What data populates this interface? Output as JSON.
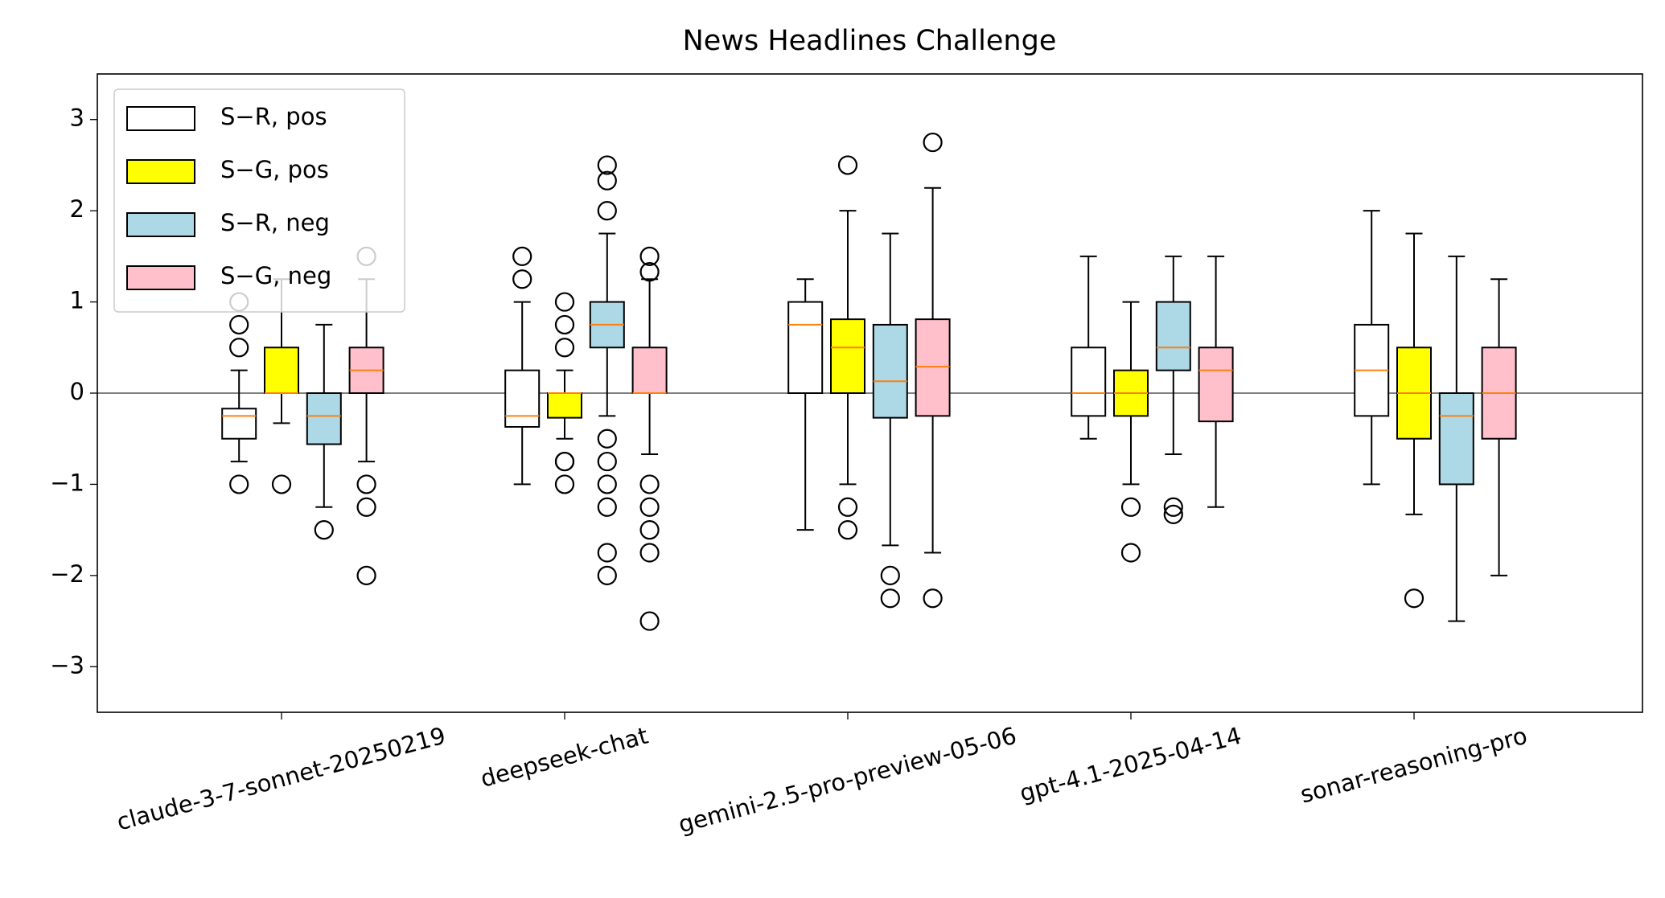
{
  "chart_data": {
    "type": "box",
    "title": "News Headlines Challenge",
    "categories": [
      "claude-3-7-sonnet-20250219",
      "deepseek-chat",
      "gemini-2.5-pro-preview-05-06",
      "gpt-4.1-2025-04-14",
      "sonar-reasoning-pro"
    ],
    "ylim": [
      -3.5,
      3.5
    ],
    "yticks": [
      {
        "value": -3,
        "label": "−3"
      },
      {
        "value": -2,
        "label": "−2"
      },
      {
        "value": -1,
        "label": "−1"
      },
      0,
      1,
      2,
      3
    ],
    "hline": 0,
    "legend_position": "upper left",
    "median_color": "#ff7f0e",
    "series": [
      {
        "name": "S−R, pos",
        "color": "#ffffff",
        "boxes": [
          {
            "whislo": -0.75,
            "q1": -0.5,
            "med": -0.25,
            "q3": -0.17,
            "whishi": 0.25,
            "fliers": [
              0.5,
              0.75,
              1.0,
              -1.0
            ]
          },
          {
            "whislo": -1.0,
            "q1": -0.37,
            "med": -0.25,
            "q3": 0.25,
            "whishi": 1.0,
            "fliers": [
              1.25,
              1.5
            ]
          },
          {
            "whislo": -1.5,
            "q1": 0,
            "med": 0.75,
            "q3": 1.0,
            "whishi": 1.25,
            "fliers": []
          },
          {
            "whislo": -0.5,
            "q1": -0.25,
            "med": 0,
            "q3": 0.5,
            "whishi": 1.5,
            "fliers": []
          },
          {
            "whislo": -1.0,
            "q1": -0.25,
            "med": 0.25,
            "q3": 0.75,
            "whishi": 2.0,
            "fliers": []
          }
        ]
      },
      {
        "name": "S−G, pos",
        "color": "#ffff00",
        "boxes": [
          {
            "whislo": -0.33,
            "q1": 0,
            "med": 0,
            "q3": 0.5,
            "whishi": 1.25,
            "fliers": [
              -1.0
            ]
          },
          {
            "whislo": -0.5,
            "q1": -0.27,
            "med": 0,
            "q3": 0,
            "whishi": 0.25,
            "fliers": [
              0.5,
              0.75,
              1.0,
              -0.75,
              -0.75,
              -1.0
            ]
          },
          {
            "whislo": -1.0,
            "q1": 0,
            "med": 0.5,
            "q3": 0.81,
            "whishi": 2.0,
            "fliers": [
              2.5,
              -1.25,
              -1.5
            ]
          },
          {
            "whislo": -1.0,
            "q1": -0.25,
            "med": 0,
            "q3": 0.25,
            "whishi": 1.0,
            "fliers": [
              -1.25,
              -1.75
            ]
          },
          {
            "whislo": -1.33,
            "q1": -0.5,
            "med": 0,
            "q3": 0.5,
            "whishi": 1.75,
            "fliers": [
              -2.25
            ]
          }
        ]
      },
      {
        "name": "S−R, neg",
        "color": "#add8e6",
        "boxes": [
          {
            "whislo": -1.25,
            "q1": -0.56,
            "med": -0.25,
            "q3": 0,
            "whishi": 0.75,
            "fliers": [
              -1.5
            ]
          },
          {
            "whislo": -0.25,
            "q1": 0.5,
            "med": 0.75,
            "q3": 1.0,
            "whishi": 1.75,
            "fliers": [
              2.0,
              2.33,
              2.5,
              -0.5,
              -0.75,
              -1.0,
              -1.25,
              -1.75,
              -2.0
            ]
          },
          {
            "whislo": -1.67,
            "q1": -0.27,
            "med": 0.13,
            "q3": 0.75,
            "whishi": 1.75,
            "fliers": [
              -2.0,
              -2.25
            ]
          },
          {
            "whislo": -0.67,
            "q1": 0.25,
            "med": 0.5,
            "q3": 1.0,
            "whishi": 1.5,
            "fliers": [
              -1.25,
              -1.33
            ]
          },
          {
            "whislo": -2.5,
            "q1": -1.0,
            "med": -0.25,
            "q3": 0,
            "whishi": 1.5,
            "fliers": []
          }
        ]
      },
      {
        "name": "S−G, neg",
        "color": "#ffc0cb",
        "boxes": [
          {
            "whislo": -0.75,
            "q1": 0,
            "med": 0.25,
            "q3": 0.5,
            "whishi": 1.25,
            "fliers": [
              1.5,
              -1.0,
              -1.25,
              -2.0
            ]
          },
          {
            "whislo": -0.67,
            "q1": 0,
            "med": 0,
            "q3": 0.5,
            "whishi": 1.25,
            "fliers": [
              1.5,
              1.33,
              -1.0,
              -1.25,
              -1.5,
              -1.75,
              -2.5
            ]
          },
          {
            "whislo": -1.75,
            "q1": -0.25,
            "med": 0.29,
            "q3": 0.81,
            "whishi": 2.25,
            "fliers": [
              2.75,
              -2.25
            ]
          },
          {
            "whislo": -1.25,
            "q1": -0.31,
            "med": 0.25,
            "q3": 0.5,
            "whishi": 1.5,
            "fliers": []
          },
          {
            "whislo": -2.0,
            "q1": -0.5,
            "med": 0,
            "q3": 0.5,
            "whishi": 1.25,
            "fliers": []
          }
        ]
      }
    ]
  }
}
